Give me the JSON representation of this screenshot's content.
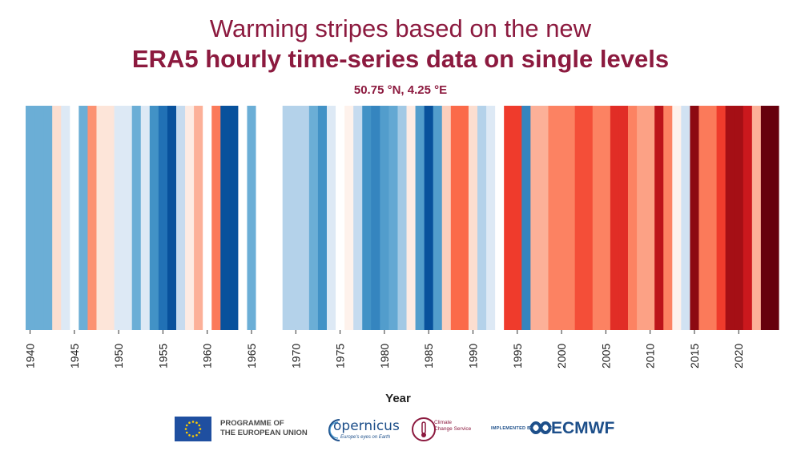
{
  "header": {
    "title_line1": "Warming stripes based on the new",
    "title_line2": "ERA5 hourly time-series data on single levels",
    "subtitle": "50.75 °N, 4.25 °E"
  },
  "chart_data": {
    "type": "heatmap",
    "title": "Warming stripes based on the new ERA5 hourly time-series data on single levels",
    "subtitle": "50.75 °N, 4.25 °E",
    "xlabel": "Year",
    "ylabel": "",
    "x_range": [
      1940,
      2024
    ],
    "x_ticks": [
      1940,
      1945,
      1950,
      1955,
      1960,
      1965,
      1970,
      1975,
      1980,
      1985,
      1990,
      1995,
      2000,
      2005,
      2010,
      2015,
      2020
    ],
    "color_scale": "blue (cold) to red (warm), relative anomaly from -3 to +3",
    "grid": false,
    "legend": "none",
    "years": [
      1940,
      1941,
      1942,
      1943,
      1944,
      1945,
      1946,
      1947,
      1948,
      1949,
      1950,
      1951,
      1952,
      1953,
      1954,
      1955,
      1956,
      1957,
      1958,
      1959,
      1960,
      1961,
      1962,
      1963,
      1964,
      1965,
      1966,
      1967,
      1968,
      1969,
      1970,
      1971,
      1972,
      1973,
      1974,
      1975,
      1976,
      1977,
      1978,
      1979,
      1980,
      1981,
      1982,
      1983,
      1984,
      1985,
      1986,
      1987,
      1988,
      1989,
      1990,
      1991,
      1992,
      1993,
      1994,
      1995,
      1996,
      1997,
      1998,
      1999,
      2000,
      2001,
      2002,
      2003,
      2004,
      2005,
      2006,
      2007,
      2008,
      2009,
      2010,
      2011,
      2012,
      2013,
      2014,
      2015,
      2016,
      2017,
      2018,
      2019,
      2020,
      2021,
      2022,
      2023,
      2024
    ],
    "anomaly_levels": [
      -1,
      -1,
      -1,
      0.5,
      -0.3,
      0,
      -1,
      1,
      0.4,
      0.4,
      -0.3,
      -0.3,
      -1,
      -0.3,
      -1.5,
      -2,
      -2.5,
      -0.5,
      0.3,
      0.8,
      0,
      1.3,
      -2.5,
      -2.5,
      0,
      -1,
      0,
      0,
      0,
      -0.6,
      -0.6,
      -0.6,
      -1,
      -1.5,
      -0.3,
      0,
      0.2,
      -0.5,
      -1.5,
      -1.7,
      -1.3,
      -1.1,
      -0.7,
      0.3,
      -1.3,
      -2.5,
      -1.3,
      0.6,
      1.5,
      1.5,
      0.5,
      -0.6,
      -0.3,
      0,
      2,
      2,
      -1.7,
      0.8,
      0.8,
      1.2,
      1.2,
      1.2,
      1.8,
      1.8,
      1.2,
      1.2,
      2.2,
      2.2,
      1.2,
      0.9,
      0.9,
      2.7,
      1.2,
      0.2,
      -0.4,
      3.2,
      1.3,
      1.3,
      2,
      3,
      3,
      2.5,
      0.8,
      3.5,
      3.5
    ]
  },
  "footer": {
    "eu_line1": "PROGRAMME OF",
    "eu_line2": "THE EUROPEAN UNION",
    "copernicus_word": "opernicus",
    "copernicus_tagline": "Europe's eyes on Earth",
    "c3s_line1": "Climate",
    "c3s_line2": "Change Service",
    "implemented_by": "IMPLEMENTED BY",
    "ecmwf_word": "ECMWF",
    "colors": {
      "title": "#8c1a3f",
      "eu_flag": "#1f4fa0",
      "eu_star": "#ffcc00",
      "ecmwf": "#1d4f8a",
      "copernicus": "#1d4f8a"
    }
  }
}
